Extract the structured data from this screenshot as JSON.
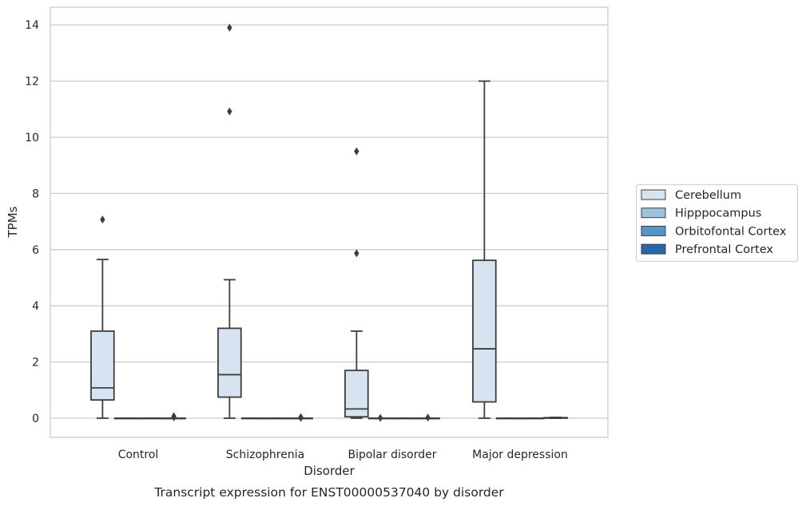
{
  "chart_data": {
    "type": "box",
    "title": "",
    "caption": "Transcript expression for ENST00000537040 by disorder",
    "xlabel": "Disorder",
    "ylabel": "TPMs",
    "ylim": [
      -0.7,
      14.6
    ],
    "yticks": [
      0,
      2,
      4,
      6,
      8,
      10,
      12,
      14
    ],
    "grid": "horizontal",
    "legend_position": "right",
    "categories": [
      "Control",
      "Schizophrenia",
      "Bipolar disorder",
      "Major depression"
    ],
    "series": [
      {
        "name": "Cerebellum",
        "color": "#d6e3f1",
        "boxes": [
          {
            "whislo": 0,
            "q1": 0.65,
            "med": 1.08,
            "q3": 3.1,
            "whishi": 5.65,
            "fliers": [
              7.07
            ]
          },
          {
            "whislo": 0,
            "q1": 0.75,
            "med": 1.55,
            "q3": 3.2,
            "whishi": 4.93,
            "fliers": [
              10.92,
              13.9
            ]
          },
          {
            "whislo": 0,
            "q1": 0.05,
            "med": 0.33,
            "q3": 1.7,
            "whishi": 3.1,
            "fliers": [
              5.87,
              9.5
            ]
          },
          {
            "whislo": 0,
            "q1": 0.58,
            "med": 2.47,
            "q3": 5.62,
            "whishi": 12.0,
            "fliers": []
          }
        ]
      },
      {
        "name": "Hipppocampus",
        "color": "#9cc3de",
        "boxes": [
          {
            "whislo": 0,
            "q1": 0,
            "med": 0,
            "q3": 0,
            "whishi": 0,
            "fliers": []
          },
          {
            "whislo": 0,
            "q1": 0,
            "med": 0,
            "q3": 0,
            "whishi": 0,
            "fliers": []
          },
          {
            "whislo": 0,
            "q1": 0,
            "med": 0,
            "q3": 0,
            "whishi": 0,
            "fliers": [
              0.01
            ]
          },
          {
            "whislo": 0,
            "q1": 0,
            "med": 0,
            "q3": 0,
            "whishi": 0,
            "fliers": []
          }
        ]
      },
      {
        "name": "Orbitofontal Cortex",
        "color": "#5596c7",
        "boxes": [
          {
            "whislo": 0,
            "q1": 0,
            "med": 0,
            "q3": 0,
            "whishi": 0,
            "fliers": []
          },
          {
            "whislo": 0,
            "q1": 0,
            "med": 0,
            "q3": 0,
            "whishi": 0,
            "fliers": []
          },
          {
            "whislo": 0,
            "q1": 0,
            "med": 0,
            "q3": 0,
            "whishi": 0,
            "fliers": []
          },
          {
            "whislo": 0,
            "q1": 0,
            "med": 0,
            "q3": 0,
            "whishi": 0,
            "fliers": []
          }
        ]
      },
      {
        "name": "Prefrontal Cortex",
        "color": "#2667a9",
        "boxes": [
          {
            "whislo": 0,
            "q1": 0,
            "med": 0,
            "q3": 0,
            "whishi": 0,
            "fliers": [
              0.03,
              0.07
            ]
          },
          {
            "whislo": 0,
            "q1": 0,
            "med": 0,
            "q3": 0,
            "whishi": 0,
            "fliers": [
              0.01,
              0.04
            ]
          },
          {
            "whislo": 0,
            "q1": 0,
            "med": 0,
            "q3": 0,
            "whishi": 0,
            "fliers": [
              0.02
            ]
          },
          {
            "whislo": 0,
            "q1": 0,
            "med": 0.01,
            "q3": 0.02,
            "whishi": 0.03,
            "fliers": []
          }
        ]
      }
    ]
  }
}
